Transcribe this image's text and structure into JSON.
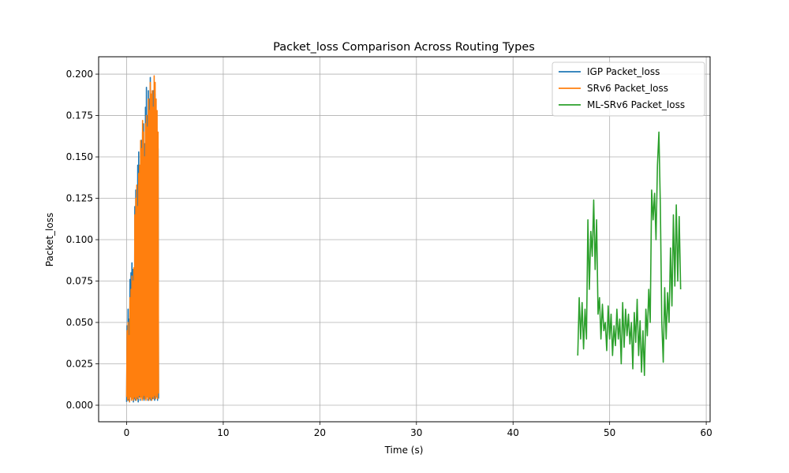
{
  "chart_data": {
    "type": "line",
    "title": "Packet_loss Comparison Across Routing Types",
    "xlabel": "Time (s)",
    "ylabel": "Packet_loss",
    "xlim": [
      -2.9,
      60.4
    ],
    "ylim": [
      -0.01,
      0.2105
    ],
    "xticks": [
      0,
      10,
      20,
      30,
      40,
      50,
      60
    ],
    "xtick_labels": [
      "0",
      "10",
      "20",
      "30",
      "40",
      "50",
      "60"
    ],
    "yticks": [
      0.0,
      0.025,
      0.05,
      0.075,
      0.1,
      0.125,
      0.15,
      0.175,
      0.2
    ],
    "ytick_labels": [
      "0.000",
      "0.025",
      "0.050",
      "0.075",
      "0.100",
      "0.125",
      "0.150",
      "0.175",
      "0.200"
    ],
    "grid": true,
    "legend_position": "top-right",
    "series": [
      {
        "name": "IGP Packet_loss",
        "color": "#1f77b4",
        "x": [
          0.0,
          0.05,
          0.1,
          0.15,
          0.2,
          0.25,
          0.3,
          0.35,
          0.4,
          0.45,
          0.5,
          0.55,
          0.6,
          0.65,
          0.7,
          0.75,
          0.8,
          0.85,
          0.9,
          0.95,
          1.0,
          1.05,
          1.1,
          1.15,
          1.2,
          1.25,
          1.3,
          1.35,
          1.4,
          1.45,
          1.5,
          1.55,
          1.6,
          1.65,
          1.7,
          1.75,
          1.8,
          1.85,
          1.9,
          1.95,
          2.0,
          2.05,
          2.1,
          2.15,
          2.2,
          2.25,
          2.3,
          2.35,
          2.4,
          2.45,
          2.5,
          2.55,
          2.6,
          2.65,
          2.7,
          2.75,
          2.8,
          2.85,
          2.9,
          2.95,
          3.0,
          3.05,
          3.1,
          3.15,
          3.2,
          3.25,
          3.3
        ],
        "y": [
          0.002,
          0.048,
          0.004,
          0.058,
          0.003,
          0.052,
          0.002,
          0.076,
          0.006,
          0.08,
          0.003,
          0.086,
          0.005,
          0.082,
          0.002,
          0.072,
          0.004,
          0.12,
          0.003,
          0.13,
          0.006,
          0.132,
          0.004,
          0.145,
          0.002,
          0.153,
          0.005,
          0.141,
          0.003,
          0.138,
          0.007,
          0.16,
          0.004,
          0.165,
          0.006,
          0.17,
          0.003,
          0.158,
          0.005,
          0.18,
          0.004,
          0.192,
          0.006,
          0.175,
          0.003,
          0.19,
          0.005,
          0.185,
          0.004,
          0.198,
          0.003,
          0.186,
          0.006,
          0.175,
          0.004,
          0.19,
          0.005,
          0.182,
          0.003,
          0.188,
          0.004,
          0.178,
          0.005,
          0.162,
          0.003,
          0.155,
          0.004
        ]
      },
      {
        "name": "SRv6 Packet_loss",
        "color": "#ff7f0e",
        "x": [
          0.0,
          0.05,
          0.1,
          0.15,
          0.2,
          0.25,
          0.3,
          0.35,
          0.4,
          0.45,
          0.5,
          0.55,
          0.6,
          0.65,
          0.7,
          0.75,
          0.8,
          0.85,
          0.9,
          0.95,
          1.0,
          1.05,
          1.1,
          1.15,
          1.2,
          1.25,
          1.3,
          1.35,
          1.4,
          1.45,
          1.5,
          1.55,
          1.6,
          1.65,
          1.7,
          1.75,
          1.8,
          1.85,
          1.9,
          1.95,
          2.0,
          2.05,
          2.1,
          2.15,
          2.2,
          2.25,
          2.3,
          2.35,
          2.4,
          2.45,
          2.5,
          2.55,
          2.6,
          2.65,
          2.7,
          2.75,
          2.8,
          2.85,
          2.9,
          2.95,
          3.0,
          3.05,
          3.1,
          3.15,
          3.2,
          3.25,
          3.3
        ],
        "y": [
          0.005,
          0.045,
          0.003,
          0.05,
          0.004,
          0.042,
          0.002,
          0.065,
          0.005,
          0.07,
          0.003,
          0.078,
          0.004,
          0.075,
          0.003,
          0.083,
          0.005,
          0.115,
          0.004,
          0.125,
          0.003,
          0.133,
          0.005,
          0.12,
          0.004,
          0.14,
          0.006,
          0.145,
          0.004,
          0.16,
          0.005,
          0.155,
          0.003,
          0.172,
          0.004,
          0.165,
          0.006,
          0.15,
          0.004,
          0.17,
          0.003,
          0.175,
          0.005,
          0.168,
          0.004,
          0.185,
          0.003,
          0.178,
          0.005,
          0.195,
          0.004,
          0.188,
          0.003,
          0.19,
          0.005,
          0.18,
          0.004,
          0.199,
          0.006,
          0.195,
          0.004,
          0.185,
          0.005,
          0.178,
          0.004,
          0.165,
          0.007
        ]
      },
      {
        "name": "ML-SRv6 Packet_loss",
        "color": "#2ca02c",
        "x": [
          46.7,
          46.85,
          47.0,
          47.15,
          47.3,
          47.45,
          47.6,
          47.75,
          47.9,
          48.05,
          48.2,
          48.35,
          48.5,
          48.65,
          48.8,
          48.95,
          49.1,
          49.25,
          49.4,
          49.55,
          49.7,
          49.85,
          50.0,
          50.15,
          50.3,
          50.45,
          50.6,
          50.75,
          50.9,
          51.05,
          51.2,
          51.35,
          51.5,
          51.65,
          51.8,
          51.95,
          52.1,
          52.25,
          52.4,
          52.55,
          52.7,
          52.85,
          53.0,
          53.15,
          53.3,
          53.45,
          53.6,
          53.75,
          53.9,
          54.05,
          54.2,
          54.35,
          54.5,
          54.65,
          54.8,
          54.95,
          55.1,
          55.25,
          55.4,
          55.55,
          55.7,
          55.85,
          56.0,
          56.15,
          56.3,
          56.45,
          56.6,
          56.75,
          56.9,
          57.05,
          57.2,
          57.35
        ],
        "y": [
          0.03,
          0.065,
          0.04,
          0.062,
          0.034,
          0.058,
          0.04,
          0.112,
          0.07,
          0.105,
          0.09,
          0.124,
          0.082,
          0.112,
          0.055,
          0.065,
          0.04,
          0.061,
          0.045,
          0.05,
          0.033,
          0.06,
          0.04,
          0.055,
          0.03,
          0.048,
          0.036,
          0.058,
          0.04,
          0.052,
          0.025,
          0.062,
          0.035,
          0.058,
          0.042,
          0.055,
          0.037,
          0.05,
          0.022,
          0.056,
          0.038,
          0.064,
          0.03,
          0.051,
          0.02,
          0.045,
          0.018,
          0.058,
          0.042,
          0.07,
          0.05,
          0.13,
          0.112,
          0.128,
          0.1,
          0.145,
          0.165,
          0.12,
          0.05,
          0.026,
          0.071,
          0.04,
          0.068,
          0.05,
          0.095,
          0.06,
          0.115,
          0.072,
          0.121,
          0.075,
          0.114,
          0.07
        ]
      }
    ]
  }
}
